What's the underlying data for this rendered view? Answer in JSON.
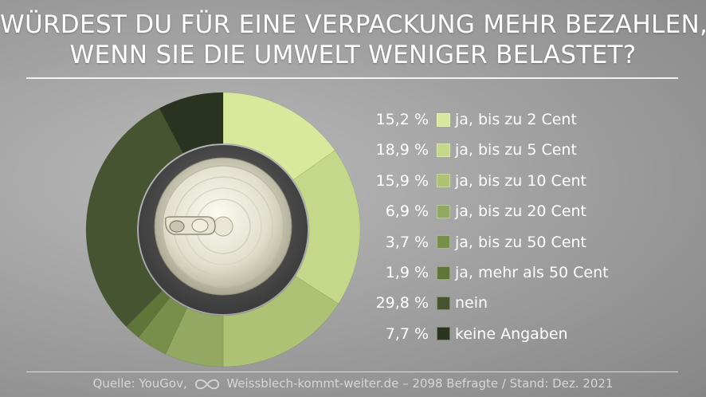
{
  "title_line1": "WÜRDEST DU FÜR EINE VERPACKUNG MEHR BEZAHLEN,",
  "title_line2": "WENN SIE DIE UMWELT WENIGER BELASTET?",
  "footer": {
    "source": "Quelle: YouGov,",
    "site": "Weissblech-kommt-weiter.de – 2098 Befragte / Stand: Dez. 2021"
  },
  "legend_values": [
    "15,2 %",
    "18,9 %",
    "15,9 %",
    "6,9 %",
    "3,7 %",
    "1,9 %",
    "29,8 %",
    "7,7 %"
  ],
  "chart_data": {
    "type": "pie",
    "title": "WÜRDEST DU FÜR EINE VERPACKUNG MEHR BEZAHLEN, WENN SIE DIE UMWELT WENIGER BELASTET?",
    "categories": [
      "ja, bis zu 2 Cent",
      "ja, bis zu 5 Cent",
      "ja, bis zu 10 Cent",
      "ja, bis zu 20 Cent",
      "ja, bis zu 50 Cent",
      "ja, mehr als 50 Cent",
      "nein",
      "keine Angaben"
    ],
    "values": [
      15.2,
      18.9,
      15.9,
      6.9,
      3.7,
      1.9,
      29.8,
      7.7
    ],
    "colors": [
      "#d8e89c",
      "#c4d78a",
      "#adc275",
      "#93a961",
      "#788f4b",
      "#5f7539",
      "#465431",
      "#2a3320"
    ],
    "legend_placement": "right"
  }
}
